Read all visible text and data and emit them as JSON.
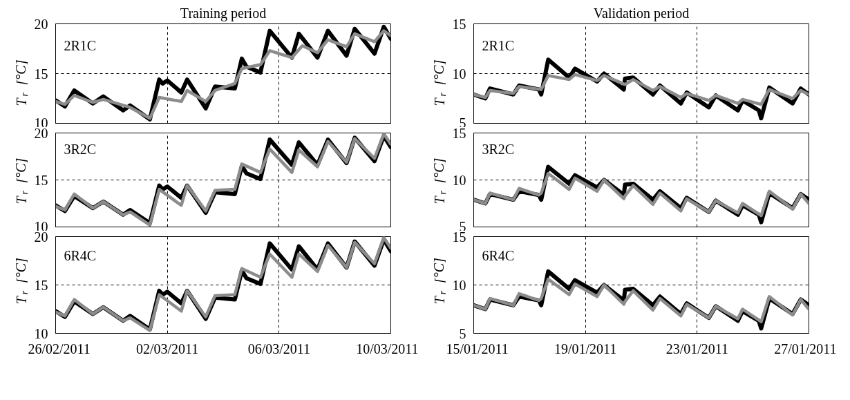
{
  "chart_data": [
    {
      "type": "line",
      "title": "Training period",
      "ylabel": "T$_{r}$ [°C]",
      "annotations": [
        "2R1C"
      ],
      "xlim": [
        "2011-02-26",
        "2011-03-10"
      ],
      "xticks": [
        {
          "value": "2011-02-26",
          "label": null
        },
        {
          "value": "2011-03-02",
          "label": null
        },
        {
          "value": "2011-03-06",
          "label": null
        },
        {
          "value": "2011-03-10",
          "label": null
        }
      ],
      "ylim": [
        10,
        20
      ],
      "yticks": [
        10,
        15,
        20
      ],
      "grid": true,
      "tick_labels": "y",
      "line_style": "solid",
      "marker": "none",
      "series": [
        {
          "color": "#000000",
          "x": [
            "2011-02-26T00:00",
            "2011-02-26T08:00",
            "2011-02-26T16:00",
            "2011-02-27T08:00",
            "2011-02-27T17:00",
            "2011-02-28T10:00",
            "2011-02-28T16:00",
            "2011-03-01T09:00",
            "2011-03-01T17:00",
            "2011-03-01T20:00",
            "2011-03-02T00:00",
            "2011-03-02T12:00",
            "2011-03-02T17:00",
            "2011-03-03T09:00",
            "2011-03-03T17:00",
            "2011-03-04T10:00",
            "2011-03-04T16:00",
            "2011-03-04T20:00",
            "2011-03-05T08:00",
            "2011-03-05T16:00",
            "2011-03-06T11:00",
            "2011-03-06T17:00",
            "2011-03-07T09:00",
            "2011-03-07T18:00",
            "2011-03-08T10:00",
            "2011-03-08T17:00",
            "2011-03-09T10:00",
            "2011-03-09T18:00",
            "2011-03-10T00:00"
          ],
          "values": [
            12.3,
            11.7,
            13.3,
            12.0,
            12.7,
            11.3,
            11.8,
            10.4,
            14.4,
            14.0,
            14.3,
            13.1,
            14.4,
            11.5,
            13.7,
            13.5,
            16.5,
            15.7,
            15.1,
            19.3,
            16.6,
            19.0,
            16.6,
            19.3,
            16.8,
            19.5,
            17.0,
            19.7,
            18.5
          ]
        },
        {
          "color": "#8c8c8c",
          "x": [
            "2011-02-26T00:00",
            "2011-02-26T08:00",
            "2011-02-26T16:00",
            "2011-02-27T08:00",
            "2011-02-27T17:00",
            "2011-02-28T16:00",
            "2011-03-01T09:00",
            "2011-03-01T17:00",
            "2011-03-02T12:00",
            "2011-03-02T17:00",
            "2011-03-03T09:00",
            "2011-03-03T17:00",
            "2011-03-04T10:00",
            "2011-03-04T16:00",
            "2011-03-05T08:00",
            "2011-03-05T16:00",
            "2011-03-06T11:00",
            "2011-03-06T20:00",
            "2011-03-07T09:00",
            "2011-03-07T18:00",
            "2011-03-08T10:00",
            "2011-03-08T17:00",
            "2011-03-09T10:00",
            "2011-03-09T18:00",
            "2011-03-10T00:00"
          ],
          "values": [
            12.2,
            11.9,
            12.8,
            12.1,
            12.4,
            11.6,
            10.5,
            12.6,
            12.2,
            13.3,
            12.2,
            13.3,
            14.0,
            15.5,
            15.9,
            17.3,
            16.6,
            17.8,
            17.1,
            18.4,
            17.7,
            19.0,
            18.2,
            19.3,
            18.8
          ]
        }
      ]
    },
    {
      "type": "line",
      "title": "Validation period",
      "ylabel": "T$_{r}$ [°C]",
      "annotations": [
        "2R1C"
      ],
      "xlim": [
        "2011-01-15",
        "2011-01-27"
      ],
      "xticks": [
        {
          "value": "2011-01-15",
          "label": null
        },
        {
          "value": "2011-01-19",
          "label": null
        },
        {
          "value": "2011-01-23",
          "label": null
        },
        {
          "value": "2011-01-27",
          "label": null
        }
      ],
      "ylim": [
        5,
        15
      ],
      "yticks": [
        5,
        10,
        15
      ],
      "grid": true,
      "tick_labels": "y",
      "line_style": "solid",
      "marker": "none",
      "series": [
        {
          "color": "#000000",
          "x": [
            "2011-01-15T00:00",
            "2011-01-15T10:00",
            "2011-01-15T14:00",
            "2011-01-16T10:00",
            "2011-01-16T15:00",
            "2011-01-17T08:00",
            "2011-01-17T10:00",
            "2011-01-17T16:00",
            "2011-01-18T10:00",
            "2011-01-18T15:00",
            "2011-01-19T10:00",
            "2011-01-19T16:00",
            "2011-01-20T09:00",
            "2011-01-20T10:00",
            "2011-01-20T17:00",
            "2011-01-21T10:00",
            "2011-01-21T16:00",
            "2011-01-22T10:00",
            "2011-01-22T15:00",
            "2011-01-23T10:00",
            "2011-01-23T16:00",
            "2011-01-24T11:00",
            "2011-01-24T15:00",
            "2011-01-25T05:00",
            "2011-01-25T07:00",
            "2011-01-25T14:00",
            "2011-01-26T10:00",
            "2011-01-26T17:00",
            "2011-01-27T00:00"
          ],
          "values": [
            7.9,
            7.5,
            8.5,
            7.9,
            8.8,
            8.4,
            7.9,
            11.4,
            9.6,
            10.5,
            9.2,
            10.0,
            8.4,
            9.5,
            9.6,
            7.9,
            8.8,
            7.0,
            8.1,
            6.6,
            7.8,
            6.3,
            7.3,
            6.3,
            5.5,
            8.6,
            7.0,
            8.5,
            7.9
          ]
        },
        {
          "color": "#8c8c8c",
          "x": [
            "2011-01-15T00:00",
            "2011-01-15T10:00",
            "2011-01-15T14:00",
            "2011-01-16T10:00",
            "2011-01-16T15:00",
            "2011-01-17T10:00",
            "2011-01-17T16:00",
            "2011-01-18T10:00",
            "2011-01-18T15:00",
            "2011-01-19T10:00",
            "2011-01-19T16:00",
            "2011-01-20T10:00",
            "2011-01-20T17:00",
            "2011-01-21T10:00",
            "2011-01-21T16:00",
            "2011-01-22T10:00",
            "2011-01-22T15:00",
            "2011-01-23T10:00",
            "2011-01-23T16:00",
            "2011-01-24T11:00",
            "2011-01-24T15:00",
            "2011-01-25T07:00",
            "2011-01-25T14:00",
            "2011-01-26T10:00",
            "2011-01-26T17:00",
            "2011-01-27T00:00"
          ],
          "values": [
            7.9,
            7.6,
            8.3,
            8.0,
            8.7,
            8.4,
            9.8,
            9.4,
            9.9,
            9.3,
            9.8,
            8.9,
            9.4,
            8.3,
            8.7,
            7.6,
            8.0,
            7.3,
            7.8,
            7.0,
            7.4,
            6.9,
            8.4,
            7.5,
            8.3,
            7.9
          ]
        }
      ]
    },
    {
      "type": "line",
      "ylabel": "T$_{r}$ [°C]",
      "annotations": [
        "3R2C"
      ],
      "xlim": [
        "2011-02-26",
        "2011-03-10"
      ],
      "xticks": [
        {
          "value": "2011-02-26",
          "label": null
        },
        {
          "value": "2011-03-02",
          "label": null
        },
        {
          "value": "2011-03-06",
          "label": null
        },
        {
          "value": "2011-03-10",
          "label": null
        }
      ],
      "ylim": [
        10,
        20
      ],
      "yticks": [
        10,
        15,
        20
      ],
      "grid": true,
      "tick_labels": "y",
      "line_style": "solid",
      "marker": "none",
      "series": [
        {
          "color": "#000000",
          "x": [
            "2011-02-26T00:00",
            "2011-02-26T08:00",
            "2011-02-26T16:00",
            "2011-02-27T08:00",
            "2011-02-27T17:00",
            "2011-02-28T10:00",
            "2011-02-28T16:00",
            "2011-03-01T09:00",
            "2011-03-01T17:00",
            "2011-03-01T20:00",
            "2011-03-02T00:00",
            "2011-03-02T12:00",
            "2011-03-02T17:00",
            "2011-03-03T09:00",
            "2011-03-03T17:00",
            "2011-03-04T10:00",
            "2011-03-04T16:00",
            "2011-03-04T20:00",
            "2011-03-05T08:00",
            "2011-03-05T16:00",
            "2011-03-06T11:00",
            "2011-03-06T17:00",
            "2011-03-07T09:00",
            "2011-03-07T18:00",
            "2011-03-08T10:00",
            "2011-03-08T17:00",
            "2011-03-09T10:00",
            "2011-03-09T18:00",
            "2011-03-10T00:00"
          ],
          "values": [
            12.3,
            11.7,
            13.3,
            12.0,
            12.7,
            11.3,
            11.8,
            10.4,
            14.4,
            14.0,
            14.3,
            13.1,
            14.4,
            11.5,
            13.7,
            13.5,
            16.5,
            15.7,
            15.1,
            19.3,
            16.6,
            19.0,
            16.6,
            19.3,
            16.8,
            19.5,
            17.0,
            19.7,
            18.5
          ]
        },
        {
          "color": "#8c8c8c",
          "x": [
            "2011-02-26T00:00",
            "2011-02-26T08:00",
            "2011-02-26T16:00",
            "2011-02-27T08:00",
            "2011-02-27T17:00",
            "2011-02-28T10:00",
            "2011-02-28T16:00",
            "2011-03-01T09:00",
            "2011-03-01T17:00",
            "2011-03-02T12:00",
            "2011-03-02T17:00",
            "2011-03-03T09:00",
            "2011-03-03T17:00",
            "2011-03-04T10:00",
            "2011-03-04T16:00",
            "2011-03-05T08:00",
            "2011-03-05T16:00",
            "2011-03-06T11:00",
            "2011-03-06T17:00",
            "2011-03-07T09:00",
            "2011-03-07T18:00",
            "2011-03-08T10:00",
            "2011-03-08T17:00",
            "2011-03-09T10:00",
            "2011-03-09T18:00",
            "2011-03-10T00:00"
          ],
          "values": [
            12.2,
            11.8,
            13.5,
            12.0,
            12.7,
            11.3,
            11.6,
            10.2,
            14.0,
            12.3,
            14.4,
            11.7,
            13.9,
            14.0,
            16.7,
            15.8,
            18.3,
            15.8,
            18.2,
            16.4,
            19.1,
            16.9,
            19.4,
            17.3,
            19.9,
            18.8
          ]
        }
      ]
    },
    {
      "type": "line",
      "ylabel": "T$_{r}$ [°C]",
      "annotations": [
        "3R2C"
      ],
      "xlim": [
        "2011-01-15",
        "2011-01-27"
      ],
      "xticks": [
        {
          "value": "2011-01-15",
          "label": null
        },
        {
          "value": "2011-01-19",
          "label": null
        },
        {
          "value": "2011-01-23",
          "label": null
        },
        {
          "value": "2011-01-27",
          "label": null
        }
      ],
      "ylim": [
        5,
        15
      ],
      "yticks": [
        5,
        10,
        15
      ],
      "grid": true,
      "tick_labels": "y",
      "line_style": "solid",
      "marker": "none",
      "series": [
        {
          "color": "#000000",
          "x": [
            "2011-01-15T00:00",
            "2011-01-15T10:00",
            "2011-01-15T14:00",
            "2011-01-16T10:00",
            "2011-01-16T15:00",
            "2011-01-17T08:00",
            "2011-01-17T10:00",
            "2011-01-17T16:00",
            "2011-01-18T10:00",
            "2011-01-18T15:00",
            "2011-01-19T10:00",
            "2011-01-19T16:00",
            "2011-01-20T09:00",
            "2011-01-20T10:00",
            "2011-01-20T17:00",
            "2011-01-21T10:00",
            "2011-01-21T16:00",
            "2011-01-22T10:00",
            "2011-01-22T15:00",
            "2011-01-23T10:00",
            "2011-01-23T16:00",
            "2011-01-24T11:00",
            "2011-01-24T15:00",
            "2011-01-25T05:00",
            "2011-01-25T07:00",
            "2011-01-25T14:00",
            "2011-01-26T10:00",
            "2011-01-26T17:00",
            "2011-01-27T00:00"
          ],
          "values": [
            7.9,
            7.5,
            8.5,
            7.9,
            8.8,
            8.4,
            7.9,
            11.4,
            9.6,
            10.5,
            9.2,
            10.0,
            8.4,
            9.5,
            9.6,
            7.9,
            8.8,
            7.0,
            8.1,
            6.6,
            7.8,
            6.3,
            7.3,
            6.3,
            5.5,
            8.6,
            7.0,
            8.5,
            7.9
          ]
        },
        {
          "color": "#8c8c8c",
          "x": [
            "2011-01-15T00:00",
            "2011-01-15T10:00",
            "2011-01-15T14:00",
            "2011-01-16T10:00",
            "2011-01-16T15:00",
            "2011-01-17T08:00",
            "2011-01-17T10:00",
            "2011-01-17T16:00",
            "2011-01-18T10:00",
            "2011-01-18T15:00",
            "2011-01-19T10:00",
            "2011-01-19T16:00",
            "2011-01-20T09:00",
            "2011-01-20T10:00",
            "2011-01-20T17:00",
            "2011-01-21T10:00",
            "2011-01-21T16:00",
            "2011-01-22T10:00",
            "2011-01-22T15:00",
            "2011-01-23T10:00",
            "2011-01-23T16:00",
            "2011-01-24T11:00",
            "2011-01-24T15:00",
            "2011-01-25T07:00",
            "2011-01-25T14:00",
            "2011-01-26T10:00",
            "2011-01-26T17:00",
            "2011-01-27T00:00"
          ],
          "values": [
            7.9,
            7.5,
            8.6,
            7.9,
            9.1,
            8.4,
            8.6,
            10.7,
            9.0,
            10.2,
            8.8,
            10.0,
            8.0,
            8.3,
            9.4,
            7.4,
            8.6,
            6.7,
            8.0,
            6.6,
            7.8,
            6.5,
            7.5,
            6.2,
            8.8,
            6.9,
            8.5,
            7.5
          ]
        }
      ]
    },
    {
      "type": "line",
      "ylabel": "T$_{r}$ [°C]",
      "annotations": [
        "6R4C"
      ],
      "xlim": [
        "2011-02-26",
        "2011-03-10"
      ],
      "xticks": [
        {
          "value": "2011-02-26",
          "label": "26/02/2011"
        },
        {
          "value": "2011-03-02",
          "label": "02/03/2011"
        },
        {
          "value": "2011-03-06",
          "label": "06/03/2011"
        },
        {
          "value": "2011-03-10",
          "label": "10/03/2011"
        }
      ],
      "ylim": [
        10,
        20
      ],
      "yticks": [
        10,
        15,
        20
      ],
      "grid": true,
      "line_style": "solid",
      "marker": "none",
      "series": [
        {
          "color": "#000000",
          "x": [
            "2011-02-26T00:00",
            "2011-02-26T08:00",
            "2011-02-26T16:00",
            "2011-02-27T08:00",
            "2011-02-27T17:00",
            "2011-02-28T10:00",
            "2011-02-28T16:00",
            "2011-03-01T09:00",
            "2011-03-01T17:00",
            "2011-03-01T20:00",
            "2011-03-02T00:00",
            "2011-03-02T12:00",
            "2011-03-02T17:00",
            "2011-03-03T09:00",
            "2011-03-03T17:00",
            "2011-03-04T10:00",
            "2011-03-04T16:00",
            "2011-03-04T20:00",
            "2011-03-05T08:00",
            "2011-03-05T16:00",
            "2011-03-06T11:00",
            "2011-03-06T17:00",
            "2011-03-07T09:00",
            "2011-03-07T18:00",
            "2011-03-08T10:00",
            "2011-03-08T17:00",
            "2011-03-09T10:00",
            "2011-03-09T18:00",
            "2011-03-10T00:00"
          ],
          "values": [
            12.3,
            11.7,
            13.3,
            12.0,
            12.7,
            11.3,
            11.8,
            10.4,
            14.4,
            14.0,
            14.3,
            13.1,
            14.4,
            11.5,
            13.7,
            13.5,
            16.5,
            15.7,
            15.1,
            19.3,
            16.6,
            19.0,
            16.6,
            19.3,
            16.8,
            19.5,
            17.0,
            19.7,
            18.5
          ]
        },
        {
          "color": "#8c8c8c",
          "x": [
            "2011-02-26T00:00",
            "2011-02-26T08:00",
            "2011-02-26T16:00",
            "2011-02-27T08:00",
            "2011-02-27T17:00",
            "2011-02-28T10:00",
            "2011-02-28T16:00",
            "2011-03-01T09:00",
            "2011-03-01T17:00",
            "2011-03-02T12:00",
            "2011-03-02T17:00",
            "2011-03-03T09:00",
            "2011-03-03T17:00",
            "2011-03-04T10:00",
            "2011-03-04T16:00",
            "2011-03-05T08:00",
            "2011-03-05T16:00",
            "2011-03-06T11:00",
            "2011-03-06T17:00",
            "2011-03-07T09:00",
            "2011-03-07T18:00",
            "2011-03-08T10:00",
            "2011-03-08T17:00",
            "2011-03-09T10:00",
            "2011-03-09T18:00",
            "2011-03-10T00:00"
          ],
          "values": [
            12.2,
            11.8,
            13.5,
            12.0,
            12.7,
            11.3,
            11.6,
            10.3,
            14.0,
            12.3,
            14.4,
            11.7,
            13.9,
            14.0,
            16.7,
            15.8,
            18.2,
            15.8,
            18.2,
            16.4,
            19.1,
            16.8,
            19.4,
            17.2,
            19.9,
            18.8
          ]
        }
      ]
    },
    {
      "type": "line",
      "ylabel": "T$_{r}$ [°C]",
      "annotations": [
        "6R4C"
      ],
      "xlim": [
        "2011-01-15",
        "2011-01-27"
      ],
      "xticks": [
        {
          "value": "2011-01-15",
          "label": "15/01/2011"
        },
        {
          "value": "2011-01-19",
          "label": "19/01/2011"
        },
        {
          "value": "2011-01-23",
          "label": "23/01/2011"
        },
        {
          "value": "2011-01-27",
          "label": "27/01/2011"
        }
      ],
      "ylim": [
        5,
        15
      ],
      "yticks": [
        5,
        10,
        15
      ],
      "grid": true,
      "line_style": "solid",
      "marker": "none",
      "series": [
        {
          "color": "#000000",
          "x": [
            "2011-01-15T00:00",
            "2011-01-15T10:00",
            "2011-01-15T14:00",
            "2011-01-16T10:00",
            "2011-01-16T15:00",
            "2011-01-17T08:00",
            "2011-01-17T10:00",
            "2011-01-17T16:00",
            "2011-01-18T10:00",
            "2011-01-18T15:00",
            "2011-01-19T10:00",
            "2011-01-19T16:00",
            "2011-01-20T09:00",
            "2011-01-20T10:00",
            "2011-01-20T17:00",
            "2011-01-21T10:00",
            "2011-01-21T16:00",
            "2011-01-22T10:00",
            "2011-01-22T15:00",
            "2011-01-23T10:00",
            "2011-01-23T16:00",
            "2011-01-24T11:00",
            "2011-01-24T15:00",
            "2011-01-25T05:00",
            "2011-01-25T07:00",
            "2011-01-25T14:00",
            "2011-01-26T10:00",
            "2011-01-26T17:00",
            "2011-01-27T00:00"
          ],
          "values": [
            7.9,
            7.5,
            8.5,
            7.9,
            8.8,
            8.4,
            7.9,
            11.4,
            9.6,
            10.5,
            9.2,
            10.0,
            8.4,
            9.5,
            9.6,
            7.9,
            8.8,
            7.0,
            8.1,
            6.6,
            7.8,
            6.3,
            7.3,
            6.3,
            5.5,
            8.6,
            7.0,
            8.5,
            7.9
          ]
        },
        {
          "color": "#8c8c8c",
          "x": [
            "2011-01-15T00:00",
            "2011-01-15T10:00",
            "2011-01-15T14:00",
            "2011-01-16T10:00",
            "2011-01-16T15:00",
            "2011-01-17T08:00",
            "2011-01-17T10:00",
            "2011-01-17T16:00",
            "2011-01-18T10:00",
            "2011-01-18T15:00",
            "2011-01-19T10:00",
            "2011-01-19T16:00",
            "2011-01-20T09:00",
            "2011-01-20T10:00",
            "2011-01-20T17:00",
            "2011-01-21T10:00",
            "2011-01-21T16:00",
            "2011-01-22T10:00",
            "2011-01-22T15:00",
            "2011-01-23T10:00",
            "2011-01-23T16:00",
            "2011-01-24T11:00",
            "2011-01-24T15:00",
            "2011-01-25T07:00",
            "2011-01-25T14:00",
            "2011-01-26T10:00",
            "2011-01-26T17:00",
            "2011-01-27T00:00"
          ],
          "values": [
            7.9,
            7.5,
            8.6,
            7.9,
            9.1,
            8.4,
            8.6,
            10.6,
            9.0,
            10.1,
            8.8,
            10.0,
            8.0,
            8.3,
            9.4,
            7.4,
            8.6,
            6.8,
            8.0,
            6.6,
            7.8,
            6.5,
            7.5,
            6.2,
            8.8,
            6.9,
            8.5,
            7.5
          ]
        }
      ]
    }
  ]
}
